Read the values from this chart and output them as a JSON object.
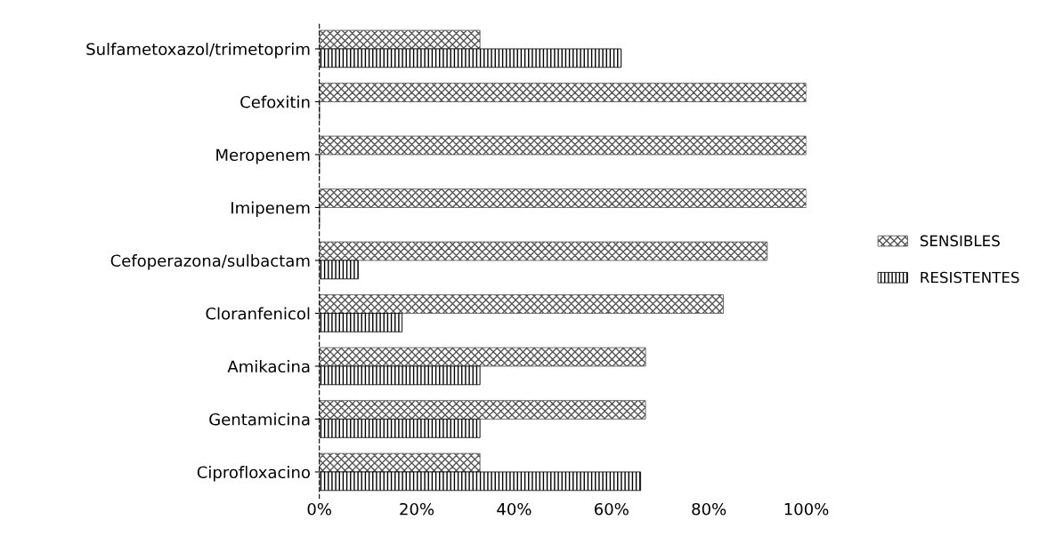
{
  "chart_data": {
    "type": "bar",
    "orientation": "horizontal",
    "categories": [
      "Sulfametoxazol/trimetoprim",
      "Cefoxitin",
      "Meropenem",
      "Imipenem",
      "Cefoperazona/sulbactam",
      "Cloranfenicol",
      "Amikacina",
      "Gentamicina",
      "Ciprofloxacino"
    ],
    "series": [
      {
        "name": "SENSIBLES",
        "color": "#555555",
        "values": [
          33,
          100,
          100,
          100,
          92,
          83,
          67,
          67,
          33
        ]
      },
      {
        "name": "RESISTENTES",
        "color": "#000000",
        "values": [
          62,
          0,
          0,
          0,
          8,
          17,
          33,
          33,
          66
        ]
      }
    ],
    "xlim": [
      0,
      100
    ],
    "xticks": [
      {
        "value": 0,
        "label": "0%"
      },
      {
        "value": 20,
        "label": "20%"
      },
      {
        "value": 40,
        "label": "40%"
      },
      {
        "value": 60,
        "label": "60%"
      },
      {
        "value": 80,
        "label": "80%"
      },
      {
        "value": 100,
        "label": "100%"
      }
    ],
    "grid": false,
    "legend": "right"
  }
}
